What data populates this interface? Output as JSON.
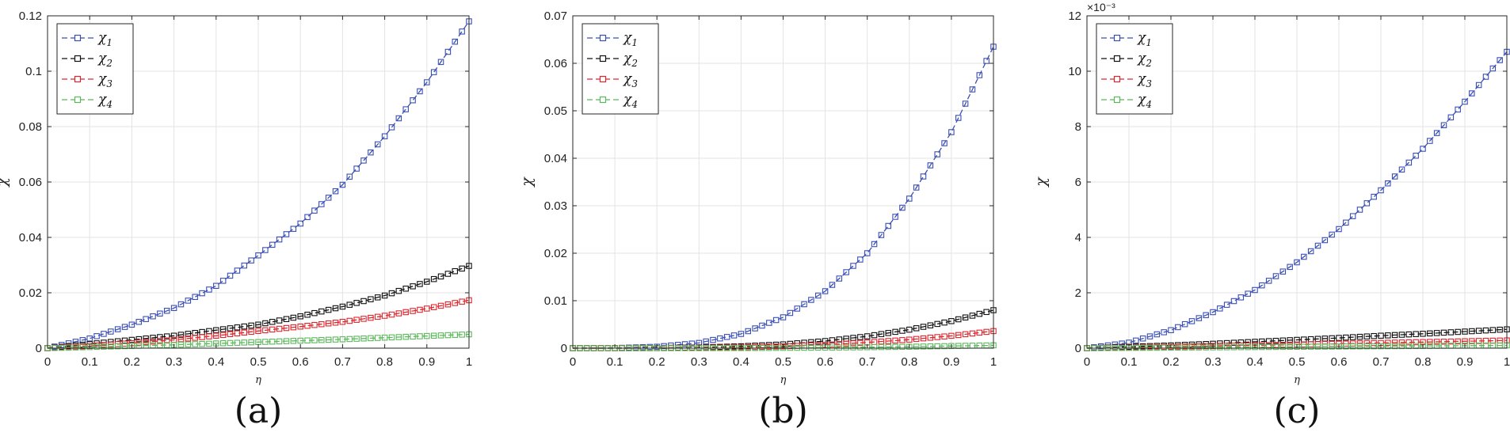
{
  "chart_data": [
    {
      "type": "line",
      "panel_label": "(a)",
      "xlabel": "η",
      "ylabel": "χ",
      "xlim": [
        0,
        1
      ],
      "ylim": [
        0,
        0.12
      ],
      "xticks": [
        0,
        0.1,
        0.2,
        0.3,
        0.4,
        0.5,
        0.6,
        0.7,
        0.8,
        0.9,
        1
      ],
      "yticks": [
        0,
        0.02,
        0.04,
        0.06,
        0.08,
        0.1,
        0.12
      ],
      "ytick_labels": [
        "0",
        "0.02",
        "0.04",
        "0.06",
        "0.08",
        "0.1",
        "0.12"
      ],
      "ytick_exponent": "",
      "grid": true,
      "legend_position": "top-left",
      "marker": "square",
      "x": [
        0,
        0.1,
        0.2,
        0.3,
        0.4,
        0.5,
        0.6,
        0.7,
        0.8,
        0.9,
        1.0
      ],
      "series": [
        {
          "name": "χ",
          "sub": "1",
          "color": "#3a4fb5",
          "values": [
            0,
            0.0035,
            0.0085,
            0.0145,
            0.0225,
            0.0335,
            0.045,
            0.059,
            0.0765,
            0.096,
            0.118
          ]
        },
        {
          "name": "χ",
          "sub": "2",
          "color": "#111111",
          "values": [
            0,
            0.0015,
            0.003,
            0.0045,
            0.0065,
            0.0085,
            0.0115,
            0.015,
            0.019,
            0.024,
            0.0297
          ]
        },
        {
          "name": "χ",
          "sub": "3",
          "color": "#e0262d",
          "values": [
            0,
            0.0008,
            0.0018,
            0.003,
            0.0045,
            0.0062,
            0.0078,
            0.0095,
            0.0117,
            0.0143,
            0.0173
          ]
        },
        {
          "name": "χ",
          "sub": "4",
          "color": "#5cb85c",
          "values": [
            0,
            0.0004,
            0.0008,
            0.0012,
            0.0017,
            0.0022,
            0.0027,
            0.0032,
            0.0038,
            0.0044,
            0.005
          ]
        }
      ]
    },
    {
      "type": "line",
      "panel_label": "(b)",
      "xlabel": "η",
      "ylabel": "χ",
      "xlim": [
        0,
        1
      ],
      "ylim": [
        0,
        0.07
      ],
      "xticks": [
        0,
        0.1,
        0.2,
        0.3,
        0.4,
        0.5,
        0.6,
        0.7,
        0.8,
        0.9,
        1
      ],
      "yticks": [
        0,
        0.01,
        0.02,
        0.03,
        0.04,
        0.05,
        0.06,
        0.07
      ],
      "ytick_labels": [
        "0",
        "0.01",
        "0.02",
        "0.03",
        "0.04",
        "0.05",
        "0.06",
        "0.07"
      ],
      "ytick_exponent": "",
      "grid": true,
      "legend_position": "top-left",
      "marker": "square",
      "x": [
        0,
        0.1,
        0.2,
        0.3,
        0.4,
        0.5,
        0.6,
        0.7,
        0.8,
        0.9,
        1.0
      ],
      "series": [
        {
          "name": "χ",
          "sub": "1",
          "color": "#3a4fb5",
          "values": [
            0,
            3e-05,
            0.0003,
            0.0011,
            0.003,
            0.0065,
            0.012,
            0.02,
            0.0315,
            0.0455,
            0.0635
          ]
        },
        {
          "name": "χ",
          "sub": "2",
          "color": "#111111",
          "values": [
            0,
            0,
            4e-05,
            0.00015,
            0.0004,
            0.0008,
            0.0015,
            0.0025,
            0.0039,
            0.0057,
            0.008
          ]
        },
        {
          "name": "χ",
          "sub": "3",
          "color": "#e0262d",
          "values": [
            0,
            0,
            2e-05,
            7e-05,
            0.00018,
            0.00038,
            0.0007,
            0.0012,
            0.0018,
            0.0026,
            0.0036
          ]
        },
        {
          "name": "χ",
          "sub": "4",
          "color": "#5cb85c",
          "values": [
            0,
            0,
            0,
            1e-05,
            3e-05,
            7e-05,
            0.00012,
            0.0002,
            0.0003,
            0.00045,
            0.0006
          ]
        }
      ]
    },
    {
      "type": "line",
      "panel_label": "(c)",
      "xlabel": "η",
      "ylabel": "χ",
      "xlim": [
        0,
        1
      ],
      "ylim": [
        0,
        0.012
      ],
      "xticks": [
        0,
        0.1,
        0.2,
        0.3,
        0.4,
        0.5,
        0.6,
        0.7,
        0.8,
        0.9,
        1
      ],
      "yticks": [
        0,
        0.002,
        0.004,
        0.006,
        0.008,
        0.01,
        0.012
      ],
      "ytick_labels": [
        "0",
        "2",
        "4",
        "6",
        "8",
        "10",
        "12"
      ],
      "ytick_exponent": "×10⁻³",
      "grid": true,
      "legend_position": "top-left",
      "marker": "square",
      "x": [
        0,
        0.1,
        0.2,
        0.3,
        0.4,
        0.5,
        0.6,
        0.7,
        0.8,
        0.9,
        1.0
      ],
      "series": [
        {
          "name": "χ",
          "sub": "1",
          "color": "#3a4fb5",
          "values": [
            0,
            0.0002,
            0.00065,
            0.0013,
            0.0021,
            0.0031,
            0.0043,
            0.0057,
            0.0072,
            0.0089,
            0.0107
          ]
        },
        {
          "name": "χ",
          "sub": "2",
          "color": "#111111",
          "values": [
            0,
            5e-05,
            0.0001,
            0.00016,
            0.00023,
            0.0003,
            0.00037,
            0.00045,
            0.00052,
            0.0006,
            0.00068
          ]
        },
        {
          "name": "χ",
          "sub": "3",
          "color": "#e0262d",
          "values": [
            0,
            2e-05,
            5e-05,
            8e-05,
            0.0001,
            0.00013,
            0.00016,
            0.00019,
            0.00022,
            0.00025,
            0.00028
          ]
        },
        {
          "name": "χ",
          "sub": "4",
          "color": "#5cb85c",
          "values": [
            0,
            1e-05,
            2e-05,
            3e-05,
            4e-05,
            5e-05,
            6e-05,
            7e-05,
            8e-05,
            9e-05,
            0.0001
          ]
        }
      ]
    }
  ]
}
